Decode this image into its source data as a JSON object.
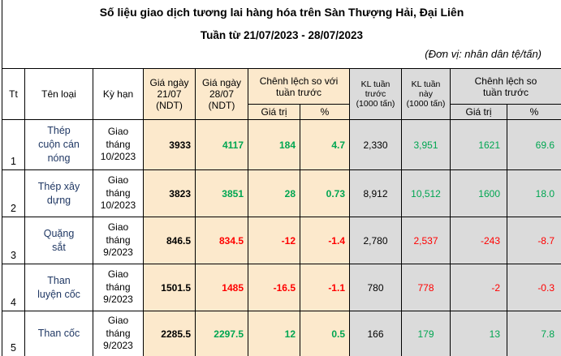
{
  "title": "Số liệu giao dịch tương lai hàng hóa trên Sàn Thượng Hải, Đại Liên",
  "subtitle": "Tuần từ 21/07/2023 - 28/07/2023",
  "unit_note": "(Đơn vị: nhân dân tệ/tấn)",
  "colors": {
    "up": "#00a651",
    "down": "#ff0000",
    "peach_bg": "#fce9cc",
    "gray_bg": "#dbdbdb",
    "name_text": "#203864"
  },
  "table": {
    "headers": {
      "tt": "Tt",
      "ten_loai": "Tên loại",
      "ky_han": "Kỳ hạn",
      "gia_2107": "Giá ngày\n21/07\n(NDT)",
      "gia_2807": "Giá ngày\n28/07\n(NDT)",
      "chenh_lech_voi": "Chênh lệch so với\ntuần trước",
      "gia_tri": "Giá trị",
      "pct": "%",
      "kl_truoc": "KL tuần\ntrước\n(1000 tấn)",
      "kl_nay": "KL tuần\nnày\n(1000 tấn)",
      "chenh_lech_so": "Chênh lệch so\ntuần trước"
    },
    "rows": [
      {
        "tt": "1",
        "name": "Thép\ncuộn cán\nnóng",
        "term": "Giao\ntháng\n10/2023",
        "p1": "3933",
        "p2": "4117",
        "d": "184",
        "dp": "4.7",
        "v1": "2,330",
        "v2": "3,951",
        "vd": "1621",
        "vdp": "69.6",
        "trend": "up"
      },
      {
        "tt": "2",
        "name": "Thép xây\ndựng",
        "term": "Giao\ntháng\n10/2023",
        "p1": "3823",
        "p2": "3851",
        "d": "28",
        "dp": "0.73",
        "v1": "8,912",
        "v2": "10,512",
        "vd": "1600",
        "vdp": "18.0",
        "trend": "up"
      },
      {
        "tt": "3",
        "name": "Quặng\nsắt",
        "term": "Giao\ntháng\n9/2023",
        "p1": "846.5",
        "p2": "834.5",
        "d": "-12",
        "dp": "-1.4",
        "v1": "2,780",
        "v2": "2,537",
        "vd": "-243",
        "vdp": "-8.7",
        "trend": "down"
      },
      {
        "tt": "4",
        "name": "Than\nluyện cốc",
        "term": "Giao\ntháng\n9/2023",
        "p1": "1501.5",
        "p2": "1485",
        "d": "-16.5",
        "dp": "-1.1",
        "v1": "780",
        "v2": "778",
        "vd": "-2",
        "vdp": "-0.3",
        "trend": "down"
      },
      {
        "tt": "5",
        "name": "Than cốc",
        "term": "Giao\ntháng\n9/2023",
        "p1": "2285.5",
        "p2": "2297.5",
        "d": "12",
        "dp": "0.5",
        "v1": "166",
        "v2": "179",
        "vd": "13",
        "vdp": "7.8",
        "trend": "up"
      }
    ]
  }
}
